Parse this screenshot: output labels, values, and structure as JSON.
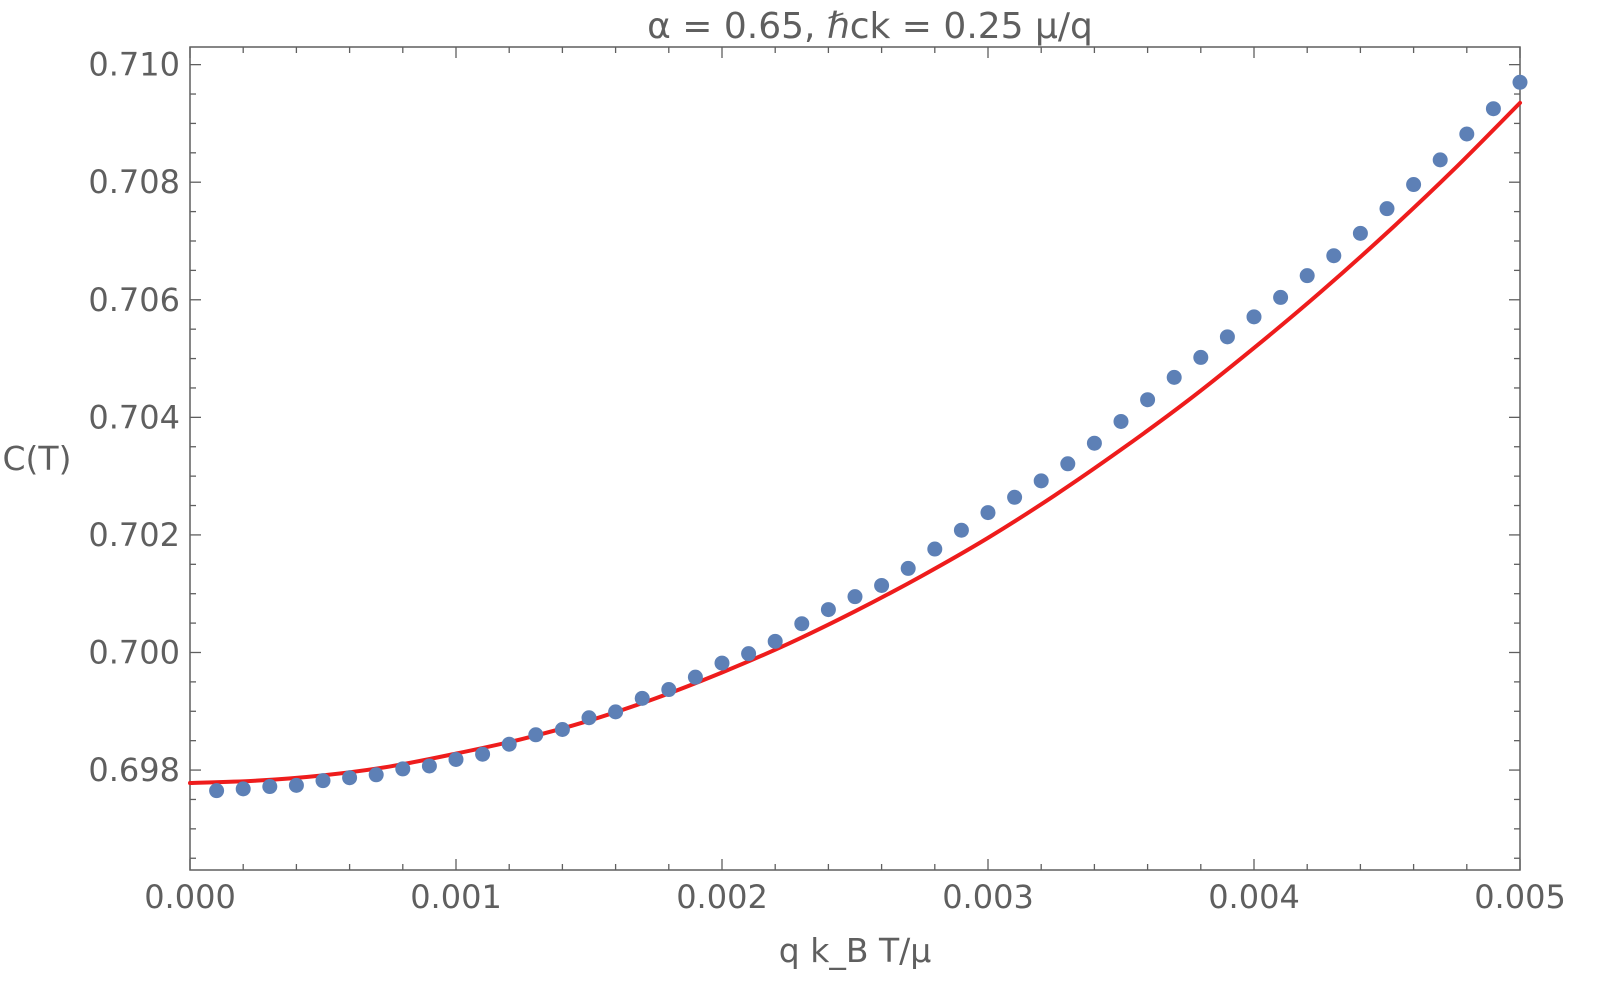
{
  "chart_data": {
    "type": "scatter",
    "title": "α = 0.65, ℏck = 0.25 μ/q",
    "xlabel": "q k_B T/μ",
    "ylabel": "C(T)",
    "xlim": [
      0,
      0.005
    ],
    "ylim": [
      0.6963,
      0.7103
    ],
    "xticks": [
      0,
      0.001,
      0.002,
      0.003,
      0.004,
      0.005
    ],
    "xtick_labels": [
      "0.000",
      "0.001",
      "0.002",
      "0.003",
      "0.004",
      "0.005"
    ],
    "yticks": [
      0.698,
      0.7,
      0.702,
      0.704,
      0.706,
      0.708,
      0.71
    ],
    "ytick_labels": [
      "0.698",
      "0.700",
      "0.702",
      "0.704",
      "0.706",
      "0.708",
      "0.710"
    ],
    "grid": false,
    "series": [
      {
        "kind": "points",
        "color": "#5d80b6",
        "x": [
          0.0001,
          0.0002,
          0.0003,
          0.0004,
          0.0005,
          0.0006,
          0.0007,
          0.0008,
          0.0009,
          0.001,
          0.0011,
          0.0012,
          0.0013,
          0.0014,
          0.0015,
          0.0016,
          0.0017,
          0.0018,
          0.0019,
          0.002,
          0.0021,
          0.0022,
          0.0023,
          0.0024,
          0.0025,
          0.0026,
          0.0027,
          0.0028,
          0.0029,
          0.003,
          0.0031,
          0.0032,
          0.0033,
          0.0034,
          0.0035,
          0.0036,
          0.0037,
          0.0038,
          0.0039,
          0.004,
          0.0041,
          0.0042,
          0.0043,
          0.0044,
          0.0045,
          0.0046,
          0.0047,
          0.0048,
          0.0049,
          0.005
        ],
        "y": [
          0.69765,
          0.69768,
          0.69772,
          0.69774,
          0.69782,
          0.69787,
          0.69792,
          0.69802,
          0.69807,
          0.69818,
          0.69827,
          0.69844,
          0.6986,
          0.69869,
          0.69889,
          0.69899,
          0.69922,
          0.69937,
          0.69958,
          0.69982,
          0.69998,
          0.70019,
          0.70049,
          0.70073,
          0.70095,
          0.70114,
          0.70143,
          0.70176,
          0.70208,
          0.70238,
          0.70264,
          0.70292,
          0.70321,
          0.70356,
          0.70393,
          0.7043,
          0.70468,
          0.70502,
          0.70537,
          0.70571,
          0.70604,
          0.70641,
          0.70675,
          0.70713,
          0.70755,
          0.70796,
          0.70838,
          0.70882,
          0.70925,
          0.7097
        ]
      },
      {
        "kind": "line",
        "color": "#ee1c1c",
        "x": [
          0,
          0.00025,
          0.0005,
          0.00075,
          0.001,
          0.00125,
          0.0015,
          0.00175,
          0.002,
          0.00225,
          0.0025,
          0.00275,
          0.003,
          0.00325,
          0.0035,
          0.00375,
          0.004,
          0.00425,
          0.0045,
          0.00475,
          0.005
        ],
        "y": [
          0.69778,
          0.69782,
          0.69791,
          0.69806,
          0.69828,
          0.69853,
          0.69884,
          0.69922,
          0.69966,
          0.70015,
          0.7007,
          0.7013,
          0.70195,
          0.70267,
          0.70345,
          0.70428,
          0.70518,
          0.70613,
          0.70714,
          0.70821,
          0.70935
        ]
      }
    ]
  }
}
